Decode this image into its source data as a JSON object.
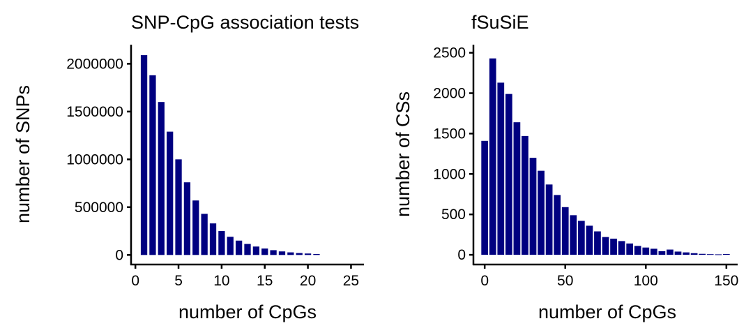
{
  "chart_data": [
    {
      "type": "bar",
      "title": "SNP-CpG association tests",
      "xlabel": "number of CpGs",
      "ylabel": "number of SNPs",
      "bar_color": "#000080",
      "xlim": [
        -0.5,
        26.5
      ],
      "ylim": [
        -100000,
        2200000
      ],
      "xticks": [
        0,
        5,
        10,
        15,
        20,
        25
      ],
      "yticks": [
        0,
        500000,
        1000000,
        1500000,
        2000000
      ],
      "bar_width": 0.75,
      "x": [
        1,
        2,
        3,
        4,
        5,
        6,
        7,
        8,
        9,
        10,
        11,
        12,
        13,
        14,
        15,
        16,
        17,
        18,
        19,
        20,
        21
      ],
      "values": [
        2090000,
        1880000,
        1600000,
        1290000,
        1000000,
        760000,
        570000,
        430000,
        330000,
        250000,
        190000,
        150000,
        115000,
        88000,
        67000,
        50000,
        37000,
        27000,
        20000,
        15000,
        10000
      ]
    },
    {
      "type": "bar",
      "title": "fSuSiE",
      "xlabel": "number of CpGs",
      "ylabel": "number of CSs",
      "bar_color": "#000080",
      "xlim": [
        -7,
        157
      ],
      "ylim": [
        -120,
        2600
      ],
      "xticks": [
        0,
        50,
        100,
        150
      ],
      "yticks": [
        0,
        500,
        1000,
        1500,
        2000,
        2500
      ],
      "bar_width": 4.2,
      "x": [
        0,
        5,
        10,
        15,
        20,
        25,
        30,
        35,
        40,
        45,
        50,
        55,
        60,
        65,
        70,
        75,
        80,
        85,
        90,
        95,
        100,
        105,
        110,
        115,
        120,
        125,
        130,
        135,
        140,
        145,
        150
      ],
      "values": [
        1410,
        2430,
        2130,
        1990,
        1640,
        1470,
        1200,
        1040,
        870,
        740,
        590,
        490,
        420,
        360,
        290,
        220,
        200,
        170,
        140,
        110,
        90,
        75,
        45,
        65,
        40,
        30,
        20,
        12,
        8,
        6,
        10
      ]
    }
  ]
}
